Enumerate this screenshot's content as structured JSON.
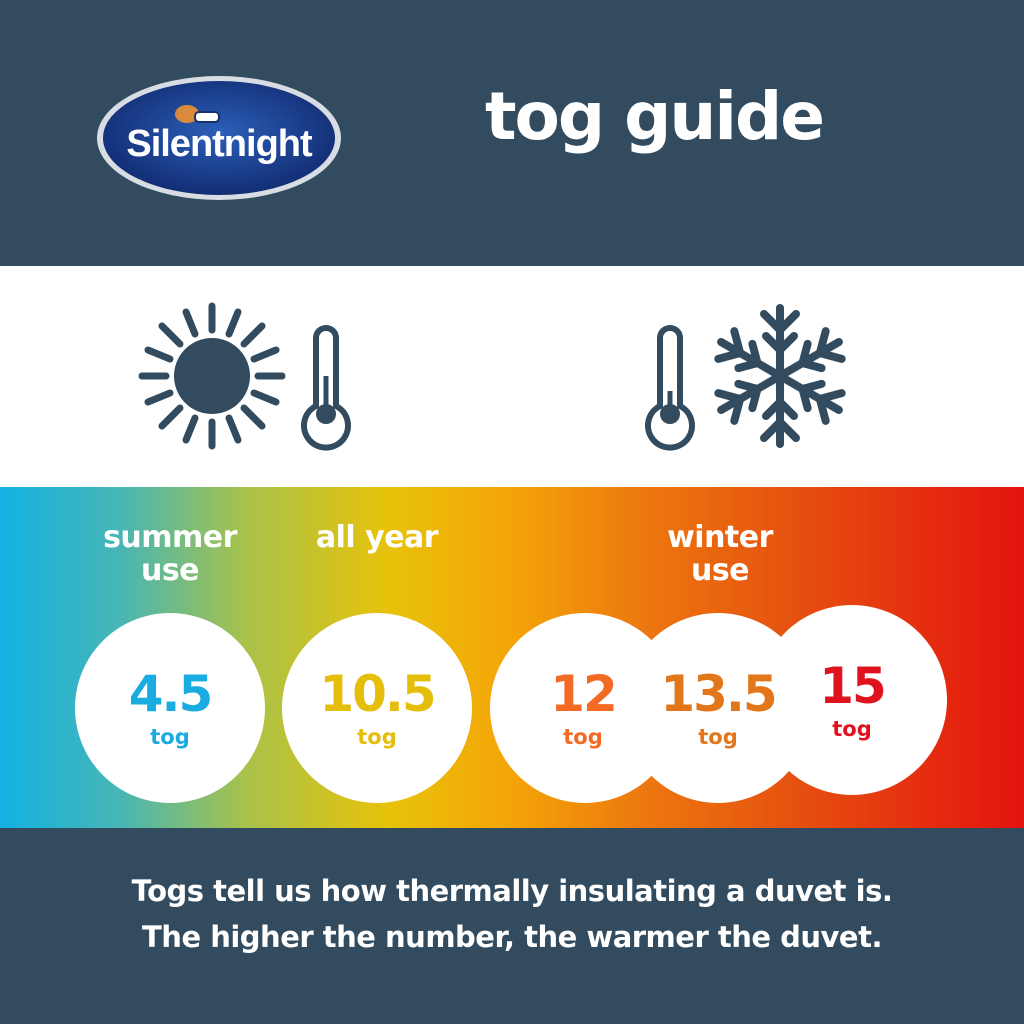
{
  "header": {
    "logo_text": "Silentnight",
    "title": "tog guide"
  },
  "icons": [
    "sun-icon",
    "thermometer-icon",
    "thermometer-icon",
    "snowflake-icon"
  ],
  "categories": {
    "summer": [
      "summer",
      "use"
    ],
    "all_year": "all year",
    "winter": [
      "winter",
      "use"
    ]
  },
  "togs": [
    {
      "value": "4.5",
      "unit": "tog",
      "color": "#1aabe0"
    },
    {
      "value": "10.5",
      "unit": "tog",
      "color": "#e5be0b"
    },
    {
      "value": "12",
      "unit": "tog",
      "color": "#f36b22"
    },
    {
      "value": "13.5",
      "unit": "tog",
      "color": "#e2761a"
    },
    {
      "value": "15",
      "unit": "tog",
      "color": "#df1320"
    }
  ],
  "footer": [
    "Togs tell us how thermally insulating a duvet is.",
    "The higher the number, the warmer the duvet."
  ],
  "colors": {
    "navy": "#324b5e",
    "icon": "#324b5e"
  }
}
